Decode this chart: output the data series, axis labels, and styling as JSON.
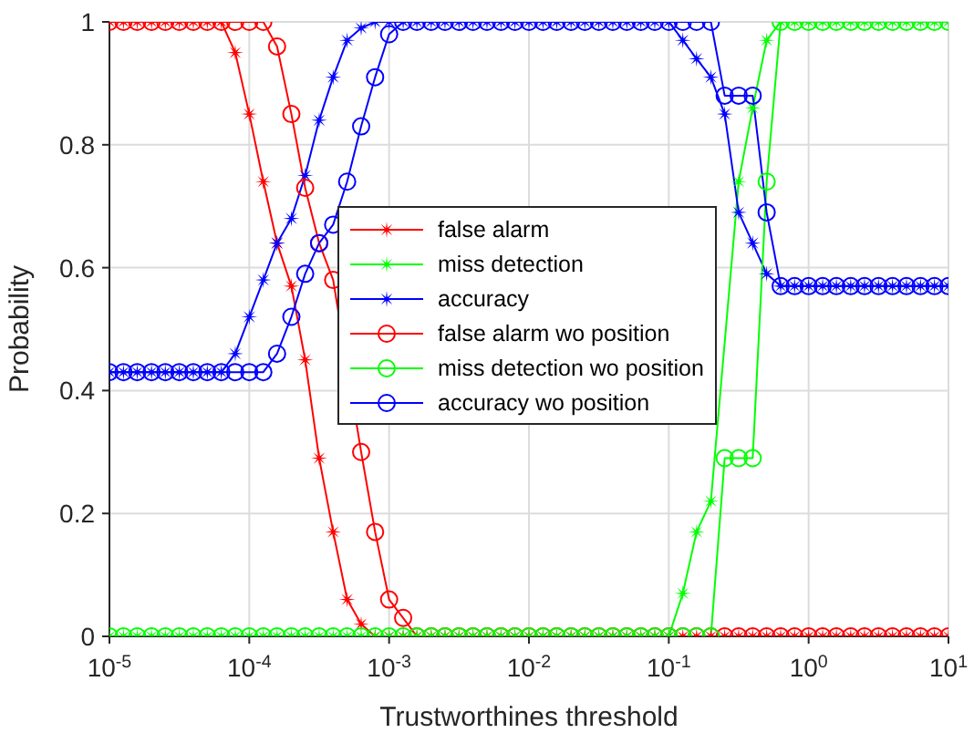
{
  "chart_data": {
    "type": "line",
    "xlabel": "Trustworthines threshold",
    "ylabel": "Probability",
    "log": "x",
    "grid": true,
    "legend": "center",
    "line_style": "solid",
    "xlim": [
      1e-05,
      10
    ],
    "xticks": [
      {
        "value": 1e-05,
        "label": "10$^{-5}$"
      },
      {
        "value": 0.0001,
        "label": "10$^{-4}$"
      },
      {
        "value": 0.001,
        "label": "10$^{-3}$"
      },
      {
        "value": 0.01,
        "label": "10$^{-2}$"
      },
      {
        "value": 0.1,
        "label": "10$^{-1}$"
      },
      {
        "value": 1,
        "label": "10$^{0}$"
      },
      {
        "value": 10,
        "label": "10$^{1}$"
      }
    ],
    "ylim": [
      0,
      1
    ],
    "yticks": [
      0,
      0.2,
      0.4,
      0.6,
      0.8,
      1
    ],
    "x": [
      1e-05,
      1.26e-05,
      1.58e-05,
      2e-05,
      2.51e-05,
      3.16e-05,
      3.98e-05,
      5.01e-05,
      6.31e-05,
      7.94e-05,
      0.0001,
      0.000126,
      0.000158,
      0.0002,
      0.000251,
      0.000316,
      0.000398,
      0.000501,
      0.000631,
      0.000794,
      0.001,
      0.00126,
      0.00158,
      0.002,
      0.00251,
      0.00316,
      0.00398,
      0.00501,
      0.00631,
      0.00794,
      0.01,
      0.0126,
      0.0158,
      0.02,
      0.0251,
      0.0316,
      0.0398,
      0.0501,
      0.0631,
      0.0794,
      0.1,
      0.126,
      0.158,
      0.2,
      0.251,
      0.316,
      0.398,
      0.501,
      0.631,
      0.794,
      1,
      1.26,
      1.58,
      2,
      2.51,
      3.16,
      3.98,
      5.01,
      6.31,
      7.94,
      10
    ],
    "series": [
      {
        "name": "false alarm",
        "color": "#ff0000",
        "marker": "star",
        "values": [
          1,
          1,
          1,
          1,
          1,
          1,
          1,
          1,
          1,
          0.95,
          0.85,
          0.74,
          0.64,
          0.57,
          0.45,
          0.29,
          0.17,
          0.06,
          0.02,
          0,
          0,
          0,
          0,
          0,
          0,
          0,
          0,
          0,
          0,
          0,
          0,
          0,
          0,
          0,
          0,
          0,
          0,
          0,
          0,
          0,
          0,
          0,
          0,
          0,
          0,
          0,
          0,
          0,
          0,
          0,
          0,
          0,
          0,
          0,
          0,
          0,
          0,
          0,
          0,
          0,
          0
        ]
      },
      {
        "name": "miss detection",
        "color": "#00ff00",
        "marker": "star",
        "values": [
          0,
          0,
          0,
          0,
          0,
          0,
          0,
          0,
          0,
          0,
          0,
          0,
          0,
          0,
          0,
          0,
          0,
          0,
          0,
          0,
          0,
          0,
          0,
          0,
          0,
          0,
          0,
          0,
          0,
          0,
          0,
          0,
          0,
          0,
          0,
          0,
          0,
          0,
          0,
          0,
          0,
          0.07,
          0.17,
          0.22,
          null,
          0.74,
          0.86,
          0.97,
          1,
          1,
          1,
          1,
          1,
          1,
          1,
          1,
          1,
          1,
          1,
          1,
          1
        ]
      },
      {
        "name": "accuracy",
        "color": "#0000ff",
        "marker": "star",
        "values": [
          0.43,
          0.43,
          0.43,
          0.43,
          0.43,
          0.43,
          0.43,
          0.43,
          0.43,
          0.46,
          0.52,
          0.58,
          0.64,
          0.68,
          0.75,
          0.84,
          0.91,
          0.97,
          0.99,
          1,
          1,
          1,
          1,
          1,
          1,
          1,
          1,
          1,
          1,
          1,
          1,
          1,
          1,
          1,
          1,
          1,
          1,
          1,
          1,
          1,
          1,
          0.97,
          0.94,
          0.91,
          0.85,
          0.69,
          0.64,
          0.59,
          0.57,
          0.57,
          0.57,
          0.57,
          0.57,
          0.57,
          0.57,
          0.57,
          0.57,
          0.57,
          0.57,
          0.57,
          0.57
        ]
      },
      {
        "name": "false alarm wo position",
        "color": "#ff0000",
        "marker": "circle",
        "values": [
          1,
          1,
          1,
          1,
          1,
          1,
          1,
          1,
          1,
          1,
          1,
          1,
          0.96,
          0.85,
          0.73,
          0.64,
          0.58,
          null,
          0.3,
          0.17,
          0.06,
          0.03,
          0,
          0,
          0,
          0,
          0,
          0,
          0,
          0,
          0,
          0,
          0,
          0,
          0,
          0,
          0,
          0,
          0,
          0,
          0,
          0,
          0,
          0,
          0,
          0,
          0,
          0,
          0,
          0,
          0,
          0,
          0,
          0,
          0,
          0,
          0,
          0,
          0,
          0,
          0
        ]
      },
      {
        "name": "miss detection wo position",
        "color": "#00ff00",
        "marker": "circle",
        "values": [
          0,
          0,
          0,
          0,
          0,
          0,
          0,
          0,
          0,
          0,
          0,
          0,
          0,
          0,
          0,
          0,
          0,
          0,
          0,
          0,
          0,
          0,
          0,
          0,
          0,
          0,
          0,
          0,
          0,
          0,
          0,
          0,
          0,
          0,
          0,
          0,
          0,
          0,
          0,
          0,
          0,
          0,
          0,
          0,
          0.29,
          0.29,
          0.29,
          0.74,
          1,
          1,
          1,
          1,
          1,
          1,
          1,
          1,
          1,
          1,
          1,
          1,
          1
        ]
      },
      {
        "name": "accuracy wo position",
        "color": "#0000ff",
        "marker": "circle",
        "values": [
          0.43,
          0.43,
          0.43,
          0.43,
          0.43,
          0.43,
          0.43,
          0.43,
          0.43,
          0.43,
          0.43,
          0.43,
          0.46,
          0.52,
          0.59,
          0.64,
          0.67,
          0.74,
          0.83,
          0.91,
          0.98,
          1,
          1,
          1,
          1,
          1,
          1,
          1,
          1,
          1,
          1,
          1,
          1,
          1,
          1,
          1,
          1,
          1,
          1,
          1,
          1,
          1,
          1,
          1,
          0.88,
          0.88,
          0.88,
          0.69,
          0.57,
          0.57,
          0.57,
          0.57,
          0.57,
          0.57,
          0.57,
          0.57,
          0.57,
          0.57,
          0.57,
          0.57,
          0.57
        ]
      }
    ]
  }
}
